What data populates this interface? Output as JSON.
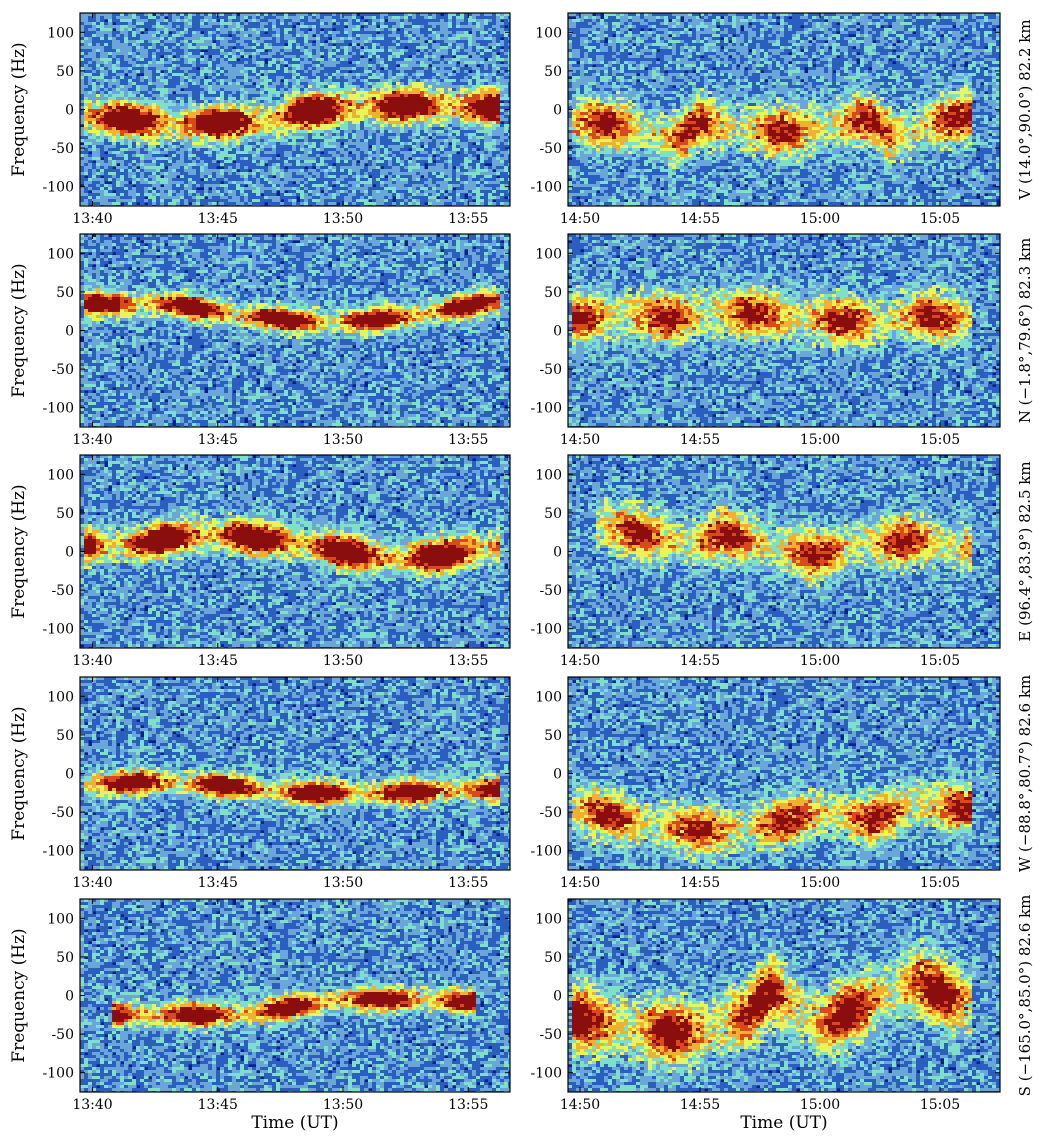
{
  "chart_data": [
    {
      "type": "heatmap",
      "panel": "V-left",
      "ylabel": "Frequency (Hz)",
      "xlabel": "",
      "x_ticks": [
        "13:40",
        "13:45",
        "13:50",
        "13:55"
      ],
      "y_ticks": [
        "100",
        "50",
        "0",
        "-50",
        "-100"
      ],
      "ylim": [
        -125,
        125
      ],
      "xlim": [
        "13:39:30",
        "13:56:40"
      ],
      "trace": {
        "width": "strong",
        "points": [
          [
            "13:40",
            -8
          ],
          [
            "13:41",
            -12
          ],
          [
            "13:43",
            -18
          ],
          [
            "13:45",
            -18
          ],
          [
            "13:47",
            -15
          ],
          [
            "13:48",
            -5
          ],
          [
            "13:50",
            2
          ],
          [
            "13:53",
            6
          ],
          [
            "13:56",
            3
          ]
        ]
      }
    },
    {
      "type": "heatmap",
      "panel": "V-right",
      "ylabel": "",
      "xlabel": "",
      "x_ticks": [
        "14:50",
        "14:55",
        "15:00",
        "15:05"
      ],
      "y_ticks": [
        "100",
        "50",
        "0",
        "-50",
        "-100"
      ],
      "ylim": [
        -125,
        125
      ],
      "xlim": [
        "14:49:30",
        "15:07:30"
      ],
      "trace": {
        "width": "weak",
        "points": [
          [
            "14:50",
            -15
          ],
          [
            "14:52",
            -20
          ],
          [
            "14:54",
            -40
          ],
          [
            "14:55",
            -15
          ],
          [
            "14:57",
            -25
          ],
          [
            "14:59",
            -30
          ],
          [
            "15:00",
            -20
          ],
          [
            "15:02",
            -10
          ],
          [
            "15:03",
            -35
          ],
          [
            "15:05",
            -15
          ],
          [
            "15:06",
            -10
          ]
        ]
      }
    },
    {
      "type": "heatmap",
      "panel": "N-left",
      "ylabel": "Frequency (Hz)",
      "xlabel": "",
      "x_ticks": [
        "13:40",
        "13:45",
        "13:50",
        "13:55"
      ],
      "y_ticks": [
        "100",
        "50",
        "0",
        "-50",
        "-100"
      ],
      "ylim": [
        -125,
        125
      ],
      "xlim": [
        "13:39:30",
        "13:56:40"
      ],
      "trace": {
        "width": "medium",
        "points": [
          [
            "13:40",
            35
          ],
          [
            "13:43",
            35
          ],
          [
            "13:45",
            25
          ],
          [
            "13:48",
            12
          ],
          [
            "13:51",
            12
          ],
          [
            "13:53",
            20
          ],
          [
            "13:56",
            38
          ]
        ]
      }
    },
    {
      "type": "heatmap",
      "panel": "N-right",
      "ylabel": "",
      "xlabel": "",
      "x_ticks": [
        "14:50",
        "14:55",
        "15:00",
        "15:05"
      ],
      "y_ticks": [
        "100",
        "50",
        "0",
        "-50",
        "-100"
      ],
      "ylim": [
        -125,
        125
      ],
      "xlim": [
        "14:49:30",
        "15:07:30"
      ],
      "trace": {
        "width": "weak",
        "points": [
          [
            "14:50",
            15
          ],
          [
            "14:52",
            20
          ],
          [
            "14:54",
            15
          ],
          [
            "14:56",
            25
          ],
          [
            "14:58",
            20
          ],
          [
            "15:00",
            15
          ],
          [
            "15:02",
            10
          ],
          [
            "15:04",
            20
          ],
          [
            "15:06",
            15
          ]
        ]
      }
    },
    {
      "type": "heatmap",
      "panel": "E-left",
      "ylabel": "Frequency (Hz)",
      "xlabel": "",
      "x_ticks": [
        "13:40",
        "13:45",
        "13:50",
        "13:55"
      ],
      "y_ticks": [
        "100",
        "50",
        "0",
        "-50",
        "-100"
      ],
      "ylim": [
        -125,
        125
      ],
      "xlim": [
        "13:39:30",
        "13:56:40"
      ],
      "trace": {
        "width": "strong",
        "points": [
          [
            "13:40",
            8
          ],
          [
            "13:42",
            10
          ],
          [
            "13:44",
            22
          ],
          [
            "13:46",
            20
          ],
          [
            "13:48",
            12
          ],
          [
            "13:50",
            0
          ],
          [
            "13:52",
            -10
          ],
          [
            "13:54",
            -5
          ],
          [
            "13:56",
            5
          ]
        ]
      }
    },
    {
      "type": "heatmap",
      "panel": "E-right",
      "ylabel": "",
      "xlabel": "",
      "x_ticks": [
        "14:50",
        "14:55",
        "15:00",
        "15:05"
      ],
      "y_ticks": [
        "100",
        "50",
        "0",
        "-50",
        "-100"
      ],
      "ylim": [
        -125,
        125
      ],
      "xlim": [
        "14:49:30",
        "15:07:30"
      ],
      "trace": {
        "width": "weak",
        "points": [
          [
            "14:51",
            35
          ],
          [
            "14:53",
            20
          ],
          [
            "14:55",
            10
          ],
          [
            "14:56",
            25
          ],
          [
            "14:58",
            5
          ],
          [
            "15:00",
            -5
          ],
          [
            "15:02",
            10
          ],
          [
            "15:04",
            15
          ],
          [
            "15:06",
            5
          ]
        ]
      }
    },
    {
      "type": "heatmap",
      "panel": "W-left",
      "ylabel": "Frequency (Hz)",
      "xlabel": "",
      "x_ticks": [
        "13:40",
        "13:45",
        "13:50",
        "13:55"
      ],
      "y_ticks": [
        "100",
        "50",
        "0",
        "-50",
        "-100"
      ],
      "ylim": [
        -125,
        125
      ],
      "xlim": [
        "13:39:30",
        "13:56:40"
      ],
      "trace": {
        "width": "medium",
        "points": [
          [
            "13:40",
            -15
          ],
          [
            "13:42",
            -10
          ],
          [
            "13:45",
            -15
          ],
          [
            "13:48",
            -25
          ],
          [
            "13:52",
            -25
          ],
          [
            "13:56",
            -20
          ]
        ]
      }
    },
    {
      "type": "heatmap",
      "panel": "W-right",
      "ylabel": "",
      "xlabel": "",
      "x_ticks": [
        "14:50",
        "14:55",
        "15:00",
        "15:05"
      ],
      "y_ticks": [
        "100",
        "50",
        "0",
        "-50",
        "-100"
      ],
      "ylim": [
        -125,
        125
      ],
      "xlim": [
        "14:49:30",
        "15:07:30"
      ],
      "trace": {
        "width": "weak",
        "points": [
          [
            "14:50",
            -45
          ],
          [
            "14:52",
            -60
          ],
          [
            "14:54",
            -70
          ],
          [
            "14:56",
            -75
          ],
          [
            "14:58",
            -65
          ],
          [
            "15:00",
            -50
          ],
          [
            "15:02",
            -60
          ],
          [
            "15:04",
            -40
          ],
          [
            "15:06",
            -45
          ]
        ]
      }
    },
    {
      "type": "heatmap",
      "panel": "S-left",
      "ylabel": "Frequency (Hz)",
      "xlabel": "Time (UT)",
      "x_ticks": [
        "13:40",
        "13:45",
        "13:50",
        "13:55"
      ],
      "y_ticks": [
        "100",
        "50",
        "0",
        "-50",
        "-100"
      ],
      "ylim": [
        -125,
        125
      ],
      "xlim": [
        "13:39:30",
        "13:56:40"
      ],
      "trace": {
        "width": "medium",
        "points": [
          [
            "13:41",
            -25
          ],
          [
            "13:43",
            -25
          ],
          [
            "13:46",
            -25
          ],
          [
            "13:48",
            -15
          ],
          [
            "13:50",
            -5
          ],
          [
            "13:53",
            -5
          ],
          [
            "13:55",
            -8
          ]
        ]
      }
    },
    {
      "type": "heatmap",
      "panel": "S-right",
      "ylabel": "",
      "xlabel": "Time (UT)",
      "x_ticks": [
        "14:50",
        "14:55",
        "15:00",
        "15:05"
      ],
      "y_ticks": [
        "100",
        "50",
        "0",
        "-50",
        "-100"
      ],
      "ylim": [
        -125,
        125
      ],
      "xlim": [
        "14:49:30",
        "15:07:30"
      ],
      "trace": {
        "width": "broad",
        "points": [
          [
            "14:50",
            -30
          ],
          [
            "14:53",
            -45
          ],
          [
            "14:55",
            -50
          ],
          [
            "14:57",
            -25
          ],
          [
            "14:58",
            10
          ],
          [
            "15:00",
            -40
          ],
          [
            "15:02",
            -10
          ],
          [
            "15:04",
            20
          ],
          [
            "15:06",
            -10
          ]
        ]
      }
    }
  ],
  "row_labels": [
    "V (14.0°,90.0°) 82.2 km",
    "N (−1.8°,79.6°) 82.3 km",
    "E (96.4°,83.9°) 82.5 km",
    "W (−88.8°,80.7°) 82.6 km",
    "S (−165.0°,85.0°) 82.6 km"
  ],
  "colormap": [
    "#0a1f8f",
    "#2a5fc0",
    "#6aa7d8",
    "#7ee0c8",
    "#e6f55a",
    "#f0b030",
    "#d84a1c",
    "#8a0e0e"
  ]
}
